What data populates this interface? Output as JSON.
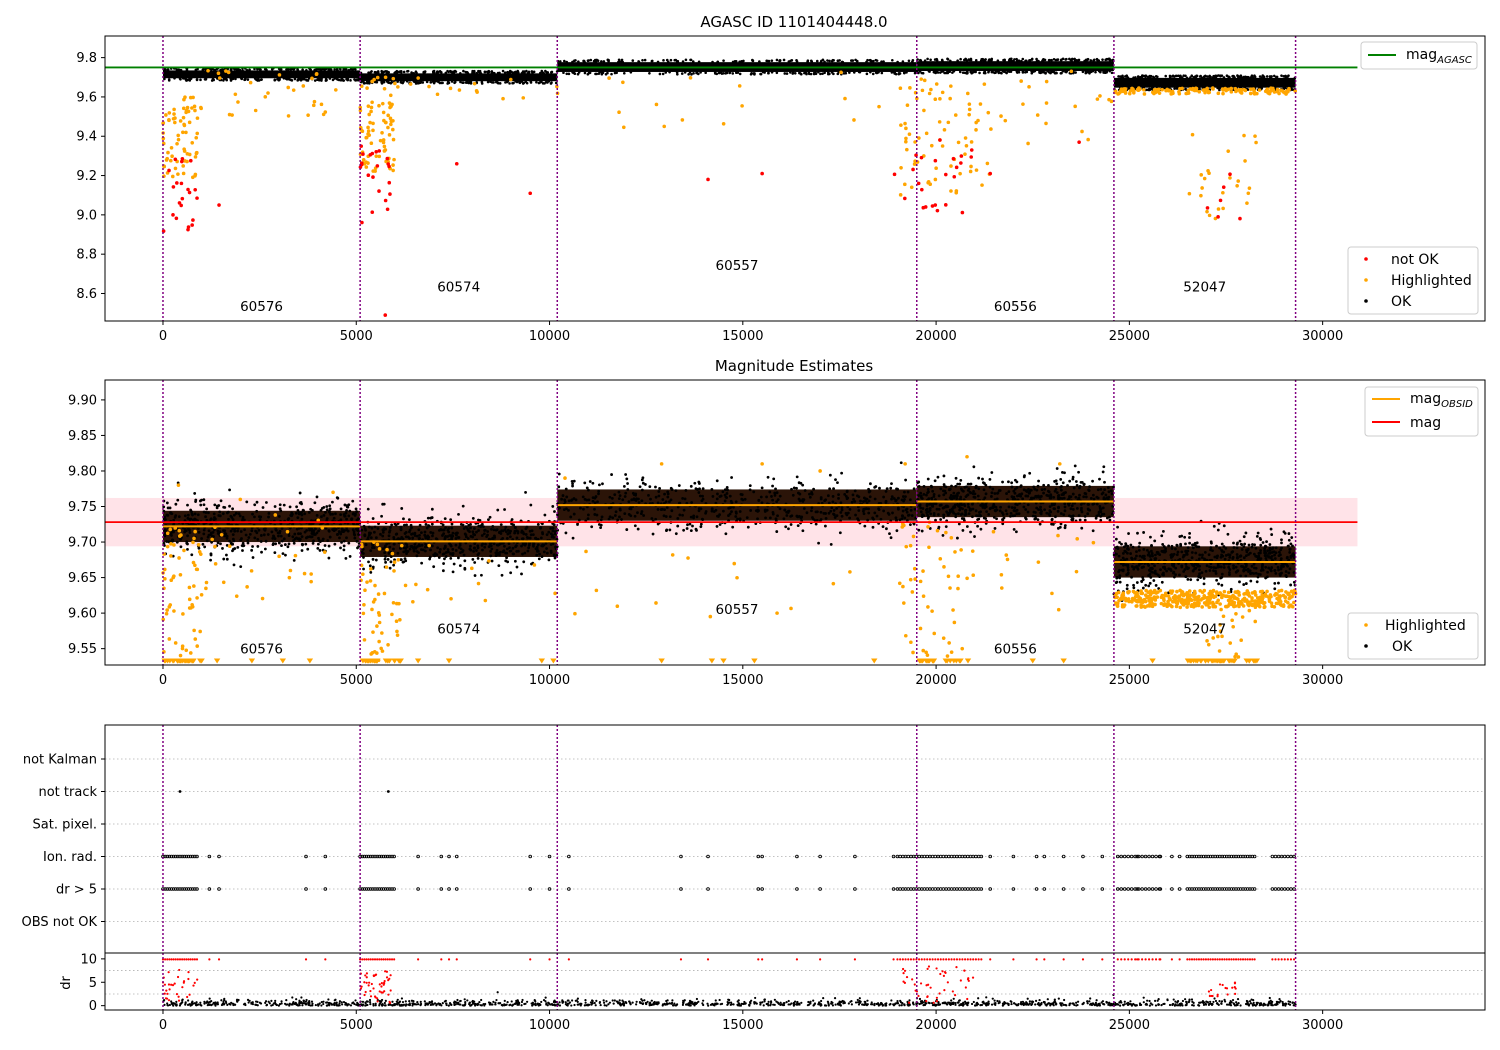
{
  "colors": {
    "ok": "#000000",
    "highlighted": "#ffa500",
    "not_ok": "#ff0000",
    "agasc_line": "#008000",
    "mag_line": "#ff0000",
    "mag_obsid_line": "#ffa500",
    "band_fill": "#ffc0cb",
    "obs_boundary": "#800080",
    "grid": "#b0b0b0"
  },
  "chart_data": [
    {
      "type": "scatter",
      "title": "AGASC ID 1101404448.0",
      "xlim": [
        -1500,
        34200
      ],
      "ylim": [
        8.46,
        9.91
      ],
      "xticks": [
        0,
        5000,
        10000,
        15000,
        20000,
        25000,
        30000
      ],
      "yticks": [
        8.6,
        8.8,
        9.0,
        9.2,
        9.4,
        9.6,
        9.8
      ],
      "ytick_labels": [
        "8.6",
        "8.8",
        "9.0",
        "9.2",
        "9.4",
        "9.6",
        "9.8"
      ],
      "legend_top": {
        "position": "top-right",
        "entries": [
          {
            "label": "mag",
            "sub": "AGASC",
            "color": "#008000",
            "kind": "line"
          }
        ]
      },
      "legend_bottom": {
        "position": "bottom-right",
        "entries": [
          {
            "label": "not OK",
            "color": "#ff0000",
            "kind": "dot"
          },
          {
            "label": "Highlighted",
            "color": "#ffa500",
            "kind": "dot"
          },
          {
            "label": "OK",
            "color": "#000000",
            "kind": "dot"
          }
        ]
      },
      "hlines": [
        {
          "name": "mag_AGASC",
          "y": 9.75,
          "x": [
            -1500,
            30900
          ]
        }
      ],
      "observation_boundaries": [
        0,
        5100,
        10200,
        19500,
        24600,
        29300
      ],
      "observations": [
        {
          "obsid": "60576",
          "x0": 0,
          "x1": 5100,
          "ok_center": 9.715,
          "ok_spread": 0.02,
          "label_x": 2550,
          "label_y": 8.51
        },
        {
          "obsid": "60574",
          "x0": 5100,
          "x1": 10200,
          "ok_center": 9.7,
          "ok_spread": 0.02,
          "label_x": 7650,
          "label_y": 8.61
        },
        {
          "obsid": "60557",
          "x0": 10200,
          "x1": 19500,
          "ok_center": 9.752,
          "ok_spread": 0.025,
          "label_x": 14850,
          "label_y": 8.72
        },
        {
          "obsid": "60556",
          "x0": 19500,
          "x1": 24600,
          "ok_center": 9.757,
          "ok_spread": 0.025,
          "label_x": 22050,
          "label_y": 8.51
        },
        {
          "obsid": "52047",
          "x0": 24600,
          "x1": 29300,
          "ok_center": 9.672,
          "ok_spread": 0.025,
          "label_x": 26950,
          "label_y": 8.61
        }
      ]
    },
    {
      "type": "scatter",
      "title": "Magnitude Estimates",
      "xlim": [
        -1500,
        34200
      ],
      "ylim": [
        9.527,
        9.928
      ],
      "xticks": [
        0,
        5000,
        10000,
        15000,
        20000,
        25000,
        30000
      ],
      "yticks": [
        9.55,
        9.6,
        9.65,
        9.7,
        9.75,
        9.8,
        9.85,
        9.9
      ],
      "ytick_labels": [
        "9.55",
        "9.60",
        "9.65",
        "9.70",
        "9.75",
        "9.80",
        "9.85",
        "9.90"
      ],
      "legend_top": {
        "position": "top-right",
        "entries": [
          {
            "label": "mag",
            "sub": "OBSID",
            "color": "#ffa500",
            "kind": "line"
          },
          {
            "label": "mag",
            "sub": "",
            "color": "#ff0000",
            "kind": "line"
          }
        ]
      },
      "legend_bottom": {
        "position": "bottom-right",
        "entries": [
          {
            "label": "Highlighted",
            "color": "#ffa500",
            "kind": "dot"
          },
          {
            "label": "OK",
            "color": "#000000",
            "kind": "dot"
          }
        ]
      },
      "mag": {
        "value": 9.728,
        "band": [
          9.694,
          9.762
        ],
        "x": [
          -1500,
          30900
        ]
      },
      "mag_obsid": [
        {
          "x0": 0,
          "x1": 5100,
          "y": 9.722
        },
        {
          "x0": 5100,
          "x1": 10200,
          "y": 9.701
        },
        {
          "x0": 10200,
          "x1": 19500,
          "y": 9.752
        },
        {
          "x0": 19500,
          "x1": 24600,
          "y": 9.757
        },
        {
          "x0": 24600,
          "x1": 29300,
          "y": 9.672
        }
      ],
      "observation_boundaries": [
        0,
        5100,
        10200,
        19500,
        24600,
        29300
      ],
      "obs_labels": [
        {
          "obsid": "60576",
          "x": 2550,
          "y": 9.543
        },
        {
          "obsid": "60574",
          "x": 7650,
          "y": 9.571
        },
        {
          "obsid": "60557",
          "x": 14850,
          "y": 9.599
        },
        {
          "obsid": "60556",
          "x": 22050,
          "y": 9.543
        },
        {
          "obsid": "52047",
          "x": 26950,
          "y": 9.571
        }
      ]
    },
    {
      "type": "scatter",
      "xlim": [
        -1500,
        34200
      ],
      "xticks": [
        0,
        5000,
        10000,
        15000,
        20000,
        25000,
        30000
      ],
      "flag_rows": [
        "not Kalman",
        "not track",
        "Sat. pixel.",
        "Ion. rad.",
        "dr > 5",
        "OBS not OK"
      ],
      "dr_ylabel": "dr",
      "dr_yticks": [
        0,
        5,
        10
      ],
      "dr_ylim": [
        -0.5,
        10.4
      ],
      "observation_boundaries": [
        0,
        5100,
        10200,
        19500,
        24600,
        29300
      ],
      "not_track_times": [
        440,
        5830
      ],
      "flag_times_extra": [
        1200,
        1450,
        3700,
        4200,
        6600,
        7200,
        7400,
        7600,
        9500,
        10000,
        10500,
        13400,
        14100,
        15400,
        15500,
        16400,
        17000,
        17900,
        18900,
        21400,
        22000,
        22600,
        22800,
        23300,
        23800,
        24300,
        25200,
        25800,
        26100,
        26300
      ]
    }
  ]
}
